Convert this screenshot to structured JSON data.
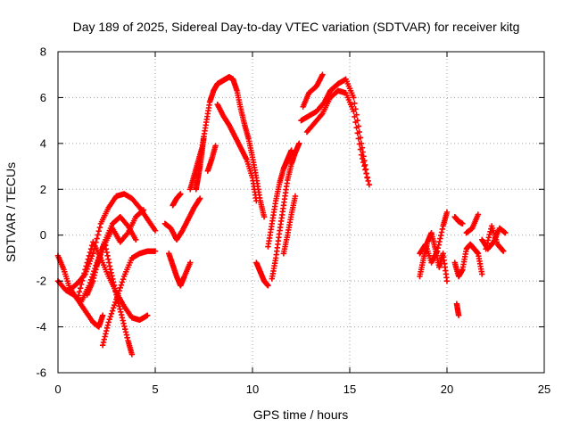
{
  "chart_data": {
    "type": "scatter",
    "title": "Day 189 of 2025, Sidereal Day-to-day VTEC variation (SDTVAR) for receiver kitg",
    "xlabel": "GPS time / hours",
    "ylabel": "SDTVAR / TECUs",
    "xlim": [
      0,
      25
    ],
    "ylim": [
      -6,
      8
    ],
    "x_ticks": [
      "0",
      "5",
      "10",
      "15",
      "20",
      "25"
    ],
    "y_ticks": [
      "-6",
      "-4",
      "-2",
      "0",
      "2",
      "4",
      "6",
      "8"
    ],
    "grid": true,
    "marker": "+",
    "color": "#ff0000",
    "series": [
      {
        "x": [
          0.0,
          0.3,
          0.6,
          1.0,
          1.4,
          1.8,
          2.1,
          2.3
        ],
        "y": [
          -0.9,
          -1.5,
          -2.3,
          -2.8,
          -3.3,
          -3.8,
          -4.0,
          -3.5
        ]
      },
      {
        "x": [
          0.0,
          0.4,
          0.8,
          1.2,
          1.6,
          2.0,
          2.4,
          2.8,
          3.2,
          3.6,
          4.0
        ],
        "y": [
          -2.0,
          -2.4,
          -2.6,
          -2.9,
          -2.2,
          -1.2,
          -0.3,
          0.5,
          0.8,
          0.4,
          -0.2
        ]
      },
      {
        "x": [
          0.6,
          1.0,
          1.4,
          1.8,
          2.2,
          2.6,
          3.0,
          3.4,
          3.8,
          4.2,
          4.6,
          5.0
        ],
        "y": [
          -2.4,
          -2.1,
          -1.7,
          -0.8,
          0.5,
          1.2,
          1.7,
          1.8,
          1.6,
          1.2,
          0.7,
          0.2
        ]
      },
      {
        "x": [
          1.0,
          1.4,
          1.8,
          2.2,
          2.6,
          3.0,
          3.4,
          3.8,
          4.2,
          4.6
        ],
        "y": [
          -2.8,
          -1.5,
          -0.3,
          -1.0,
          -1.8,
          -2.5,
          -3.1,
          -3.6,
          -3.7,
          -3.5
        ]
      },
      {
        "x": [
          1.5,
          1.8,
          2.1,
          2.4,
          2.7,
          3.0,
          3.3,
          3.6,
          3.8
        ],
        "y": [
          -2.6,
          -2.0,
          -1.0,
          -0.3,
          -1.5,
          -2.6,
          -3.6,
          -4.6,
          -5.2
        ]
      },
      {
        "x": [
          2.3,
          2.6,
          3.0,
          3.4,
          3.8,
          4.2,
          4.6,
          5.0
        ],
        "y": [
          -4.8,
          -3.8,
          -2.8,
          -1.8,
          -1.0,
          -0.8,
          -0.7,
          -0.7
        ]
      },
      {
        "x": [
          2.0,
          2.4,
          2.8,
          3.2,
          3.6,
          4.0,
          4.4
        ],
        "y": [
          -1.3,
          -0.4,
          0.3,
          -0.3,
          0.1,
          0.8,
          1.1
        ]
      },
      {
        "x": [
          5.7,
          5.9,
          6.1,
          6.3,
          6.5,
          6.8
        ],
        "y": [
          -0.8,
          -1.3,
          -1.8,
          -2.2,
          -1.8,
          -1.2
        ]
      },
      {
        "x": [
          5.9,
          6.1,
          6.3
        ],
        "y": [
          1.3,
          1.6,
          1.8
        ]
      },
      {
        "x": [
          5.5,
          5.8,
          6.1,
          6.4,
          6.7,
          7.0,
          7.3
        ],
        "y": [
          0.5,
          0.3,
          -0.2,
          0.2,
          0.7,
          1.2,
          1.6
        ]
      },
      {
        "x": [
          6.8,
          7.0,
          7.2,
          7.4,
          7.6,
          7.8,
          8.0,
          8.2,
          8.4,
          8.6,
          8.8,
          9.0,
          9.2,
          9.4,
          9.6,
          9.8,
          10.0,
          10.2,
          10.4,
          10.6
        ],
        "y": [
          2.0,
          2.6,
          3.2,
          3.8,
          4.8,
          5.8,
          6.3,
          6.6,
          6.7,
          6.8,
          6.9,
          6.8,
          6.3,
          5.5,
          4.8,
          4.2,
          3.4,
          2.5,
          1.5,
          0.8
        ]
      },
      {
        "x": [
          8.2,
          8.5,
          8.8,
          9.1,
          9.4,
          9.7,
          10.0,
          10.2
        ],
        "y": [
          5.7,
          5.2,
          4.8,
          4.3,
          3.8,
          3.3,
          2.5,
          1.5
        ]
      },
      {
        "x": [
          7.7,
          7.9,
          8.1
        ],
        "y": [
          2.8,
          3.3,
          3.9
        ]
      },
      {
        "x": [
          7.1,
          7.2,
          7.3,
          7.4,
          7.5
        ],
        "y": [
          2.0,
          2.5,
          3.0,
          3.6,
          4.3
        ]
      },
      {
        "x": [
          10.2,
          10.4,
          10.6,
          10.8
        ],
        "y": [
          -1.2,
          -1.6,
          -2.0,
          -2.2
        ]
      },
      {
        "x": [
          11.0,
          11.2,
          11.4,
          11.6,
          11.8,
          12.0,
          12.2,
          12.4
        ],
        "y": [
          -1.9,
          -1.0,
          0.2,
          1.3,
          2.4,
          3.1,
          3.6,
          4.0
        ]
      },
      {
        "x": [
          10.8,
          11.0,
          11.2,
          11.4,
          11.6,
          11.8,
          12.0
        ],
        "y": [
          -0.5,
          0.5,
          1.5,
          2.3,
          2.9,
          3.3,
          3.7
        ]
      },
      {
        "x": [
          11.6,
          11.8,
          12.0,
          12.2
        ],
        "y": [
          -0.8,
          0.0,
          0.9,
          1.7
        ]
      },
      {
        "x": [
          12.5,
          12.9,
          13.3,
          13.7,
          14.0,
          14.4,
          14.8,
          15.2,
          15.6,
          15.9
        ],
        "y": [
          5.0,
          5.2,
          5.4,
          5.8,
          6.3,
          6.6,
          6.8,
          6.0,
          4.0,
          2.5
        ]
      },
      {
        "x": [
          12.8,
          13.2,
          13.6,
          14.0,
          14.4,
          14.8,
          15.2,
          15.6,
          16.0
        ],
        "y": [
          4.5,
          4.9,
          5.3,
          6.0,
          6.3,
          6.2,
          5.4,
          3.5,
          2.2
        ]
      },
      {
        "x": [
          12.6,
          12.9,
          13.3,
          13.6
        ],
        "y": [
          5.6,
          6.2,
          6.5,
          7.0
        ]
      },
      {
        "x": [
          18.6,
          18.8,
          19.0,
          19.2,
          19.4,
          19.6,
          19.8,
          20.0
        ],
        "y": [
          -1.8,
          -1.0,
          -0.3,
          0.1,
          -0.6,
          -1.4,
          -0.8,
          -2.0
        ]
      },
      {
        "x": [
          18.6,
          18.9,
          19.2,
          19.5,
          19.8,
          20.0
        ],
        "y": [
          -0.8,
          -0.4,
          -1.2,
          -0.7,
          0.4,
          1.0
        ]
      },
      {
        "x": [
          20.4,
          20.6,
          20.8,
          21.0,
          21.2,
          21.4,
          21.6,
          21.8
        ],
        "y": [
          -1.2,
          -1.8,
          -1.5,
          -0.6,
          -0.4,
          -0.6,
          -0.8,
          -1.7
        ]
      },
      {
        "x": [
          20.4,
          20.6,
          20.8
        ],
        "y": [
          0.8,
          0.6,
          0.5
        ]
      },
      {
        "x": [
          20.5,
          20.6
        ],
        "y": [
          -3.0,
          -3.5
        ]
      },
      {
        "x": [
          21.0,
          21.3,
          21.6
        ],
        "y": [
          0.1,
          0.3,
          0.9
        ]
      },
      {
        "x": [
          21.8,
          22.1,
          22.4,
          22.7,
          23.0
        ],
        "y": [
          -0.2,
          -0.6,
          -0.3,
          0.3,
          0.1
        ]
      },
      {
        "x": [
          22.0,
          22.3,
          22.6,
          22.9
        ],
        "y": [
          -0.6,
          0.4,
          -0.4,
          -0.7
        ]
      }
    ]
  }
}
